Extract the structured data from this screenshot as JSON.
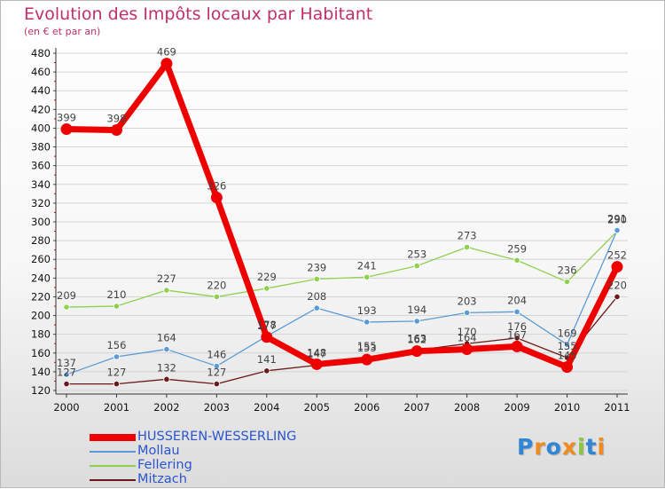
{
  "title": "Evolution des Impôts locaux par Habitant",
  "subtitle": "(en € et par an)",
  "logo": {
    "text": "Proxiti",
    "letters": [
      "P",
      "r",
      "o",
      "x",
      "i",
      "t",
      "i"
    ],
    "colors": [
      "#2f86d6",
      "#f08a1c",
      "#2f86d6",
      "#f08a1c",
      "#8cc63f",
      "#2f86d6",
      "#f08a1c"
    ]
  },
  "chart_data": {
    "type": "line",
    "title": "Evolution des Impôts locaux par Habitant",
    "subtitle": "(en € et par an)",
    "xlabel": "",
    "ylabel": "",
    "ylim": [
      120,
      480
    ],
    "yticks": [
      120,
      140,
      160,
      180,
      200,
      220,
      240,
      260,
      280,
      300,
      320,
      340,
      360,
      380,
      400,
      420,
      440,
      460,
      480
    ],
    "categories": [
      "2000",
      "2001",
      "2002",
      "2003",
      "2004",
      "2005",
      "2006",
      "2007",
      "2008",
      "2009",
      "2010",
      "2011"
    ],
    "grid": "horizontal",
    "legend": "bottom-left",
    "series": [
      {
        "name": "Mitzach",
        "color": "#6b1a1a",
        "values": [
          127,
          127,
          132,
          127,
          141,
          147,
          155,
          163,
          170,
          176,
          155,
          220
        ]
      },
      {
        "name": "Fellering",
        "color": "#8fd14f",
        "values": [
          209,
          210,
          227,
          220,
          229,
          239,
          241,
          253,
          273,
          259,
          236,
          290
        ]
      },
      {
        "name": "Mollau",
        "color": "#5b9bd5",
        "values": [
          137,
          156,
          164,
          146,
          178,
          208,
          193,
          194,
          203,
          204,
          169,
          291
        ]
      },
      {
        "name": "HUSSEREN-WESSERLING",
        "color": "#ee0000",
        "values": [
          399,
          398,
          469,
          326,
          177,
          148,
          153,
          162,
          164,
          167,
          145,
          252
        ]
      }
    ]
  }
}
